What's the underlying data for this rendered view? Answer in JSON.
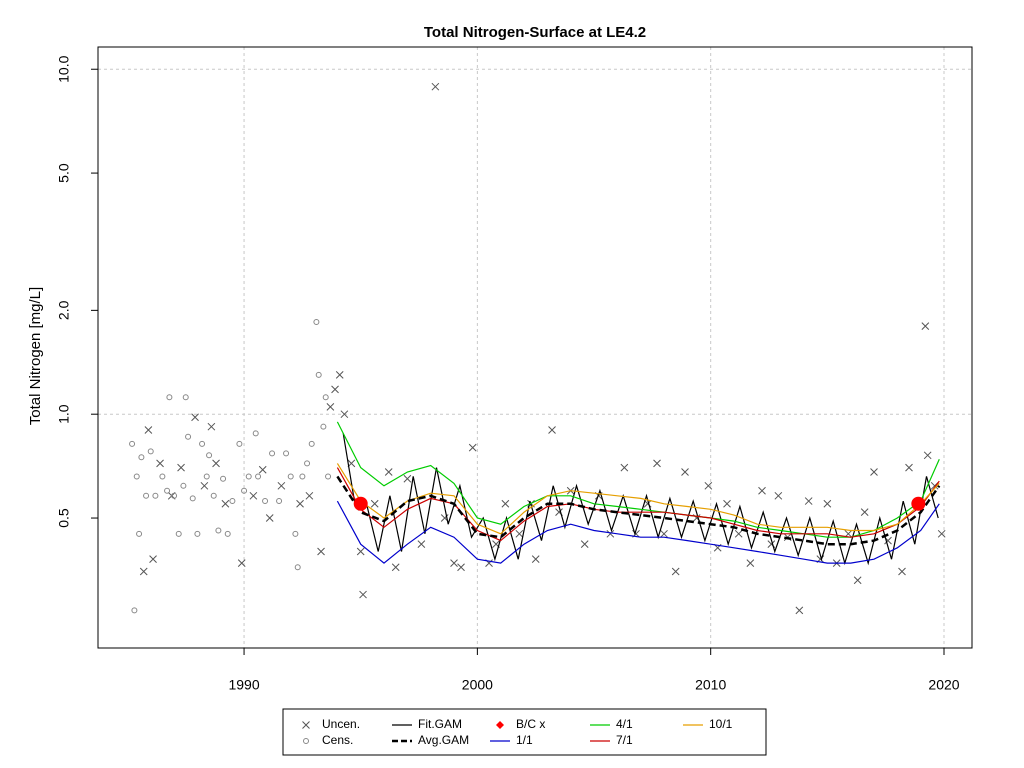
{
  "chart_data": {
    "type": "line",
    "title": "Total Nitrogen-Surface at LE4.2",
    "y_label": "Total Nitrogen [mg/L]",
    "y_scale": "log",
    "xlim": [
      1983.74,
      2021.2
    ],
    "ylim": [
      0.21,
      11.6
    ],
    "xticks": [
      1990,
      2000,
      2010,
      2020
    ],
    "yticks": [
      0.5,
      {
        "value": 1,
        "label": "1.0"
      },
      {
        "value": 2,
        "label": "2.0"
      },
      {
        "value": 5,
        "label": "5.0"
      },
      {
        "value": 10,
        "label": "10.0"
      }
    ],
    "xgrid": true,
    "ygrid": [
      1,
      10
    ],
    "legend": "bottom",
    "series": [
      {
        "name": "Uncen.",
        "mark": "x",
        "color": "#555555",
        "x": [
          1985.7,
          1985.9,
          1986.1,
          1986.4,
          1986.9,
          1987.3,
          1987.9,
          1988.3,
          1988.6,
          1988.8,
          1989.2,
          1989.9,
          1990.4,
          1990.8,
          1991.1,
          1991.6,
          1992.4,
          1992.8,
          1993.3,
          1993.7,
          1993.9,
          1994.1,
          1994.3,
          1994.6,
          1995.0,
          1995.1,
          1995.6,
          1996.2,
          1996.5,
          1997.0,
          1997.6,
          1998.2,
          1998.6,
          1999.0,
          1999.3,
          1999.8,
          2000.5,
          2000.8,
          2001.2,
          2001.8,
          2002.3,
          2002.5,
          2003.2,
          2003.5,
          2004.0,
          2004.6,
          2005.2,
          2005.7,
          2006.3,
          2006.8,
          2007.3,
          2007.7,
          2008.0,
          2008.5,
          2008.9,
          2009.4,
          2009.9,
          2010.3,
          2010.7,
          2011.2,
          2011.7,
          2012.2,
          2012.6,
          2012.9,
          2013.3,
          2013.8,
          2014.2,
          2014.7,
          2015.0,
          2015.4,
          2015.9,
          2016.3,
          2016.6,
          2017.0,
          2017.6,
          2018.2,
          2018.5,
          2019.2,
          2019.3,
          2019.6,
          2019.9
        ],
        "values": [
          0.35,
          0.9,
          0.38,
          0.72,
          0.58,
          0.7,
          0.98,
          0.62,
          0.92,
          0.72,
          0.55,
          0.37,
          0.58,
          0.69,
          0.5,
          0.62,
          0.55,
          0.58,
          0.4,
          1.05,
          1.18,
          1.3,
          1.0,
          0.72,
          0.4,
          0.3,
          0.55,
          0.68,
          0.36,
          0.65,
          0.42,
          8.9,
          0.5,
          0.37,
          0.36,
          0.8,
          0.37,
          0.42,
          0.55,
          0.45,
          0.55,
          0.38,
          0.9,
          0.52,
          0.6,
          0.42,
          0.58,
          0.45,
          0.7,
          0.45,
          0.55,
          0.72,
          0.45,
          0.35,
          0.68,
          0.5,
          0.62,
          0.41,
          0.55,
          0.45,
          0.37,
          0.6,
          0.42,
          0.58,
          0.44,
          0.27,
          0.56,
          0.38,
          0.55,
          0.37,
          0.45,
          0.33,
          0.52,
          0.68,
          0.43,
          0.35,
          0.7,
          1.8,
          0.76,
          0.62,
          0.45
        ]
      },
      {
        "name": "Cens.",
        "mark": "o",
        "color": "#888888",
        "x": [
          1985.2,
          1985.3,
          1985.4,
          1985.5,
          1985.6,
          1985.8,
          1986.0,
          1986.2,
          1986.5,
          1986.7,
          1986.8,
          1987.0,
          1987.2,
          1987.4,
          1987.5,
          1987.6,
          1987.8,
          1988.0,
          1988.2,
          1988.4,
          1988.5,
          1988.7,
          1988.9,
          1989.1,
          1989.3,
          1989.5,
          1989.8,
          1990.0,
          1990.2,
          1990.5,
          1990.6,
          1990.9,
          1991.2,
          1991.5,
          1991.8,
          1992.0,
          1992.2,
          1992.3,
          1992.5,
          1992.7,
          1992.9,
          1993.1,
          1993.2,
          1993.4,
          1993.5,
          1993.6
        ],
        "values": [
          0.82,
          0.27,
          0.66,
          0.45,
          0.75,
          0.58,
          0.78,
          0.58,
          0.66,
          0.6,
          1.12,
          0.58,
          0.45,
          0.62,
          1.12,
          0.86,
          0.57,
          0.45,
          0.82,
          0.66,
          0.76,
          0.58,
          0.46,
          0.65,
          0.45,
          0.56,
          0.82,
          0.6,
          0.66,
          0.88,
          0.66,
          0.56,
          0.77,
          0.56,
          0.77,
          0.66,
          0.45,
          0.36,
          0.66,
          0.72,
          0.82,
          1.85,
          1.3,
          0.92,
          1.12,
          0.66
        ]
      },
      {
        "name": "Fit.GAM",
        "mark": "line",
        "color": "#000000",
        "x": [
          1994.25,
          1994.75,
          1995.25,
          1995.75,
          1996.25,
          1996.75,
          1997.25,
          1997.75,
          1998.25,
          1998.75,
          1999.25,
          1999.75,
          2000.25,
          2000.75,
          2001.25,
          2001.75,
          2002.25,
          2002.75,
          2003.25,
          2003.75,
          2004.25,
          2004.75,
          2005.25,
          2005.75,
          2006.25,
          2006.75,
          2007.25,
          2007.75,
          2008.25,
          2008.75,
          2009.25,
          2009.75,
          2010.25,
          2010.75,
          2011.25,
          2011.75,
          2012.25,
          2012.75,
          2013.25,
          2013.75,
          2014.25,
          2014.75,
          2015.25,
          2015.75,
          2016.25,
          2016.75,
          2017.25,
          2017.75,
          2018.25,
          2018.75,
          2019.25,
          2019.75
        ],
        "values": [
          0.88,
          0.55,
          0.55,
          0.4,
          0.58,
          0.4,
          0.66,
          0.45,
          0.7,
          0.48,
          0.62,
          0.44,
          0.5,
          0.38,
          0.5,
          0.38,
          0.56,
          0.43,
          0.62,
          0.47,
          0.62,
          0.48,
          0.6,
          0.46,
          0.58,
          0.45,
          0.58,
          0.44,
          0.57,
          0.44,
          0.56,
          0.43,
          0.55,
          0.42,
          0.54,
          0.41,
          0.52,
          0.4,
          0.5,
          0.39,
          0.5,
          0.38,
          0.49,
          0.37,
          0.48,
          0.37,
          0.5,
          0.38,
          0.56,
          0.42,
          0.66,
          0.5
        ]
      },
      {
        "name": "Avg.GAM",
        "mark": "dashed",
        "color": "#000000",
        "x": [
          1994,
          1995,
          1996,
          1997,
          1998,
          1999,
          2000,
          2001,
          2002,
          2003,
          2004,
          2005,
          2006,
          2007,
          2008,
          2009,
          2010,
          2011,
          2012,
          2013,
          2014,
          2015,
          2016,
          2017,
          2018,
          2019,
          2019.8
        ],
        "values": [
          0.66,
          0.52,
          0.49,
          0.56,
          0.58,
          0.55,
          0.45,
          0.44,
          0.5,
          0.55,
          0.55,
          0.53,
          0.52,
          0.51,
          0.5,
          0.49,
          0.48,
          0.47,
          0.45,
          0.44,
          0.43,
          0.42,
          0.42,
          0.43,
          0.46,
          0.52,
          0.62
        ]
      },
      {
        "name": "B/C x",
        "mark": "point",
        "color": "#ff0000",
        "x": [
          1995.0,
          2018.9
        ],
        "values": [
          0.55,
          0.55
        ]
      },
      {
        "name": "1/1",
        "mark": "line",
        "color": "#0000cc",
        "x": [
          1994,
          1995,
          1996,
          1997,
          1998,
          1999,
          2000,
          2001,
          2002,
          2003,
          2004,
          2005,
          2006,
          2007,
          2008,
          2009,
          2010,
          2011,
          2012,
          2013,
          2014,
          2015,
          2016,
          2017,
          2018,
          2019,
          2019.8
        ],
        "values": [
          0.56,
          0.42,
          0.37,
          0.42,
          0.47,
          0.44,
          0.38,
          0.37,
          0.42,
          0.46,
          0.48,
          0.46,
          0.45,
          0.44,
          0.44,
          0.43,
          0.42,
          0.41,
          0.4,
          0.39,
          0.38,
          0.37,
          0.37,
          0.38,
          0.41,
          0.46,
          0.55
        ]
      },
      {
        "name": "4/1",
        "mark": "line",
        "color": "#00cc00",
        "x": [
          1994,
          1995,
          1996,
          1997,
          1998,
          1999,
          2000,
          2001,
          2002,
          2003,
          2004,
          2005,
          2006,
          2007,
          2008,
          2009,
          2010,
          2011,
          2012,
          2013,
          2014,
          2015,
          2016,
          2017,
          2018,
          2019,
          2019.8
        ],
        "values": [
          0.95,
          0.7,
          0.62,
          0.68,
          0.71,
          0.63,
          0.5,
          0.48,
          0.54,
          0.58,
          0.58,
          0.55,
          0.54,
          0.53,
          0.52,
          0.51,
          0.5,
          0.49,
          0.47,
          0.46,
          0.45,
          0.44,
          0.44,
          0.46,
          0.5,
          0.56,
          0.74
        ]
      },
      {
        "name": "7/1",
        "mark": "line",
        "color": "#cc0000",
        "x": [
          1994,
          1995,
          1996,
          1997,
          1998,
          1999,
          2000,
          2001,
          2002,
          2003,
          2004,
          2005,
          2006,
          2007,
          2008,
          2009,
          2010,
          2011,
          2012,
          2013,
          2014,
          2015,
          2016,
          2017,
          2018,
          2019,
          2019.8
        ],
        "values": [
          0.7,
          0.53,
          0.47,
          0.53,
          0.57,
          0.55,
          0.46,
          0.43,
          0.49,
          0.54,
          0.55,
          0.53,
          0.52,
          0.52,
          0.52,
          0.51,
          0.5,
          0.48,
          0.46,
          0.45,
          0.45,
          0.45,
          0.44,
          0.45,
          0.48,
          0.54,
          0.64
        ]
      },
      {
        "name": "10/1",
        "mark": "line",
        "color": "#e69f00",
        "x": [
          1994,
          1995,
          1996,
          1997,
          1998,
          1999,
          2000,
          2001,
          2002,
          2003,
          2004,
          2005,
          2006,
          2007,
          2008,
          2009,
          2010,
          2011,
          2012,
          2013,
          2014,
          2015,
          2016,
          2017,
          2018,
          2019,
          2019.8
        ],
        "values": [
          0.72,
          0.56,
          0.5,
          0.56,
          0.59,
          0.58,
          0.48,
          0.45,
          0.52,
          0.58,
          0.6,
          0.59,
          0.58,
          0.57,
          0.55,
          0.54,
          0.53,
          0.51,
          0.48,
          0.47,
          0.47,
          0.47,
          0.46,
          0.46,
          0.48,
          0.55,
          0.63
        ]
      }
    ]
  }
}
